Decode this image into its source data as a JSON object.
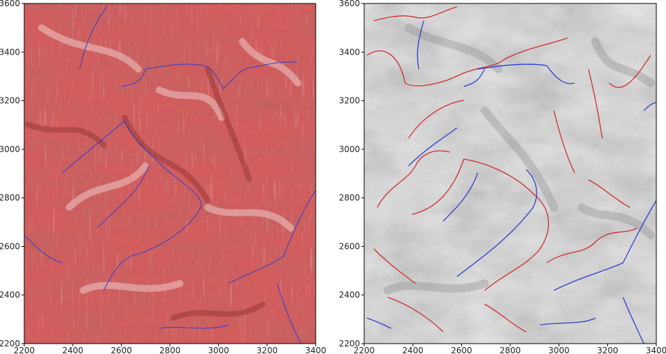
{
  "figure": {
    "panels": [
      {
        "id": "left",
        "rendering": "red-shaded flow texture with blue channel lines",
        "xticks": [
          "2200",
          "2400",
          "2600",
          "2800",
          "3000",
          "3200",
          "3400"
        ],
        "yticks": [
          "2200",
          "2400",
          "2600",
          "2800",
          "3000",
          "3200",
          "3400",
          "3600"
        ],
        "xlim": [
          2200,
          3400
        ],
        "ylim": [
          2200,
          3600
        ],
        "colors": {
          "base": "#c94a4a",
          "light": "#f2d6d6",
          "dark": "#7a2020",
          "channel": "#2a3fd0"
        }
      },
      {
        "id": "right",
        "rendering": "grey hillshade with red and blue contour lines",
        "xticks": [
          "2200",
          "2400",
          "2600",
          "2800",
          "3000",
          "3200",
          "3400"
        ],
        "yticks": [
          "2200",
          "2400",
          "2600",
          "2800",
          "3000",
          "3200",
          "3400",
          "3600"
        ],
        "xlim": [
          2200,
          3400
        ],
        "ylim": [
          2200,
          3600
        ],
        "colors": {
          "base": "#c9c9c9",
          "light": "#f4f4f4",
          "dark": "#8a8a8a",
          "contour_red": "#d01818",
          "contour_blue": "#1a2ad0"
        }
      }
    ]
  }
}
